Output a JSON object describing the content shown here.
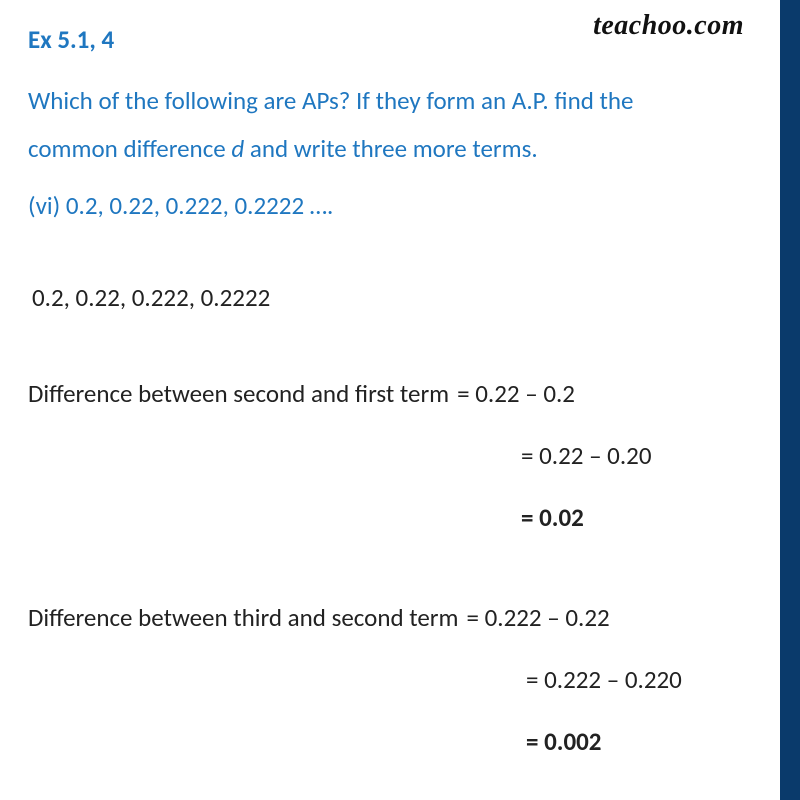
{
  "brand": "teachoo.com",
  "heading": "Ex 5.1, 4",
  "question_part1": "Which of the following are APs? If they form an A.P. find the",
  "question_part2a": "common difference ",
  "question_d": "d",
  "question_part2b": " and write three more terms.",
  "sub_item": "(vi) 0.2, 0.22, 0.222, 0.2222 ….",
  "sequence_line": "0.2, 0.22, 0.222, 0.2222",
  "diff1": {
    "label": "Difference between second and first term",
    "eq1": "= 0.22 – 0.2",
    "eq2": "= 0.22 – 0.20",
    "eq3": "= 0.02"
  },
  "diff2": {
    "label": "Difference between third and second term",
    "eq1": "= 0.222 – 0.22",
    "eq2": "= 0.222 – 0.220",
    "eq3": "= 0.002"
  },
  "colors": {
    "heading": "#1f77c0",
    "body": "#222222",
    "stripe": "#0a3a6b",
    "brand": "#111111",
    "background": "#ffffff"
  },
  "typography": {
    "heading_fontsize": 25,
    "body_fontsize": 25,
    "brand_fontsize": 28,
    "heading_weight": 700,
    "bold_weight": 700
  }
}
